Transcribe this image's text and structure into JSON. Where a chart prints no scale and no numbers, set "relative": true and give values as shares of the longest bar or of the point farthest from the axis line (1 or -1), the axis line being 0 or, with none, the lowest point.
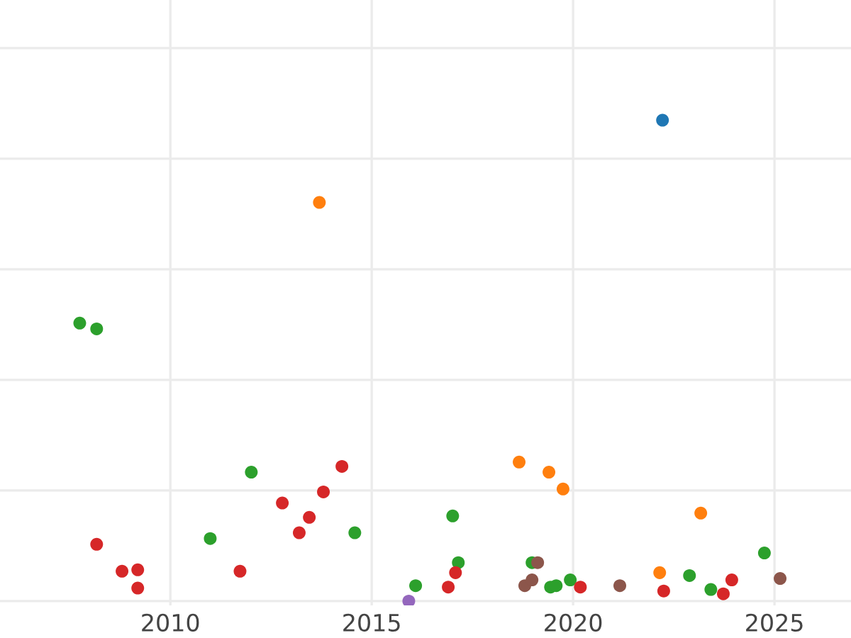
{
  "chart_data": {
    "type": "scatter",
    "relative": true,
    "grid": true,
    "marker": "circle",
    "xlim": [
      2005.77,
      2026.9
    ],
    "xticks": [
      2010,
      2015,
      2020,
      2025
    ],
    "series": [
      {
        "color": "#1f77b4",
        "x": [
          2022.22
        ],
        "values": [
          1.0
        ]
      },
      {
        "color": "#ff7f0e",
        "x": [
          2013.7,
          2018.66,
          2019.4,
          2019.75,
          2022.15,
          2023.17
        ],
        "values": [
          0.829,
          0.289,
          0.268,
          0.233,
          0.059,
          0.183
        ]
      },
      {
        "color": "#2ca02c",
        "x": [
          2007.75,
          2008.17,
          2010.99,
          2012.01,
          2014.58,
          2016.09,
          2017.01,
          2017.15,
          2018.98,
          2019.44,
          2019.58,
          2019.93,
          2022.89,
          2023.42,
          2024.75
        ],
        "values": [
          0.578,
          0.566,
          0.13,
          0.268,
          0.142,
          0.032,
          0.177,
          0.08,
          0.08,
          0.029,
          0.032,
          0.044,
          0.053,
          0.024,
          0.1
        ]
      },
      {
        "color": "#d62728",
        "x": [
          2008.17,
          2008.8,
          2009.19,
          2009.19,
          2011.73,
          2012.78,
          2013.2,
          2013.45,
          2013.8,
          2014.26,
          2016.9,
          2017.08,
          2020.18,
          2022.25,
          2023.73,
          2023.94
        ],
        "values": [
          0.118,
          0.062,
          0.065,
          0.027,
          0.062,
          0.204,
          0.142,
          0.174,
          0.227,
          0.28,
          0.029,
          0.059,
          0.029,
          0.021,
          0.015,
          0.044
        ]
      },
      {
        "color": "#9467bd",
        "x": [
          2015.92
        ],
        "values": [
          0.0
        ]
      },
      {
        "color": "#8c564b",
        "x": [
          2018.8,
          2018.98,
          2019.12,
          2021.16,
          2025.14
        ],
        "values": [
          0.032,
          0.044,
          0.08,
          0.032,
          0.047
        ]
      }
    ]
  }
}
